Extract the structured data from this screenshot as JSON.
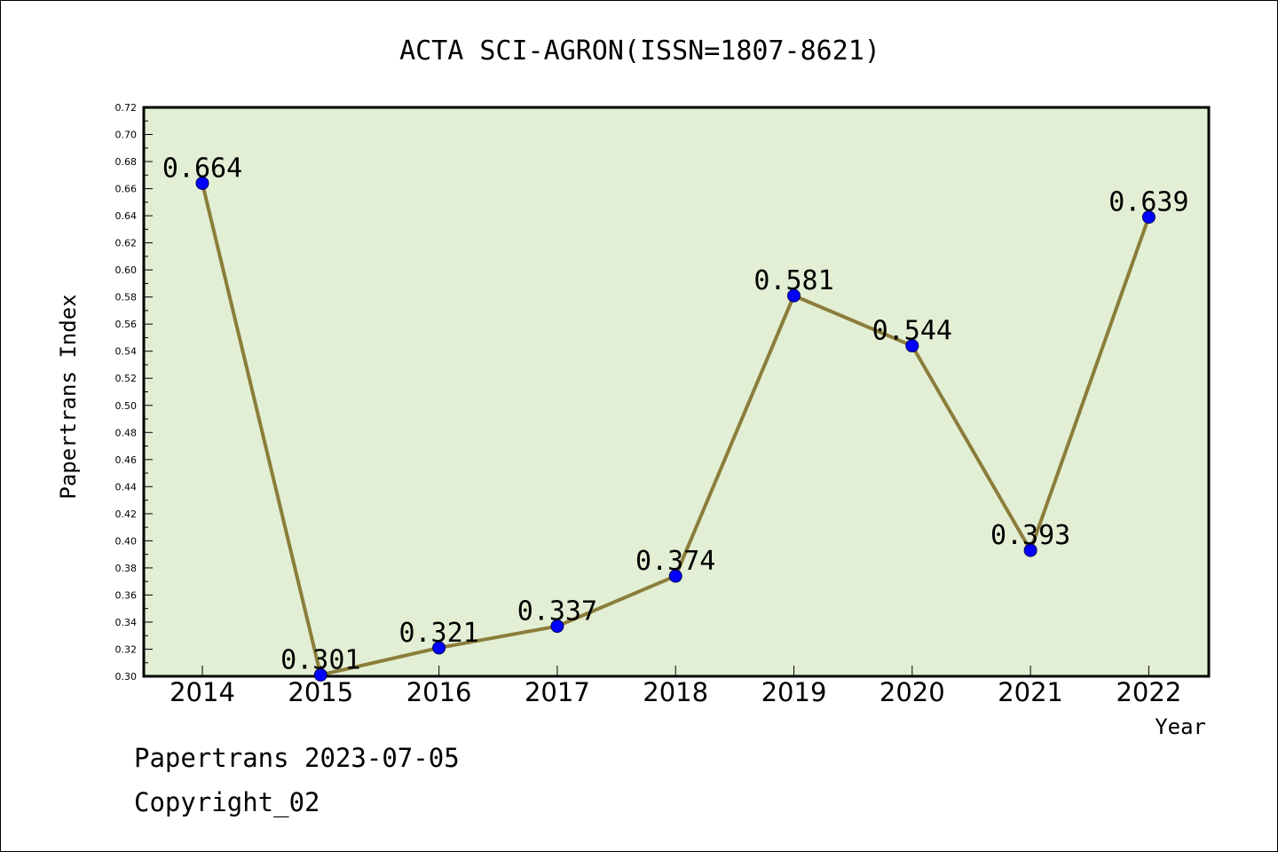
{
  "chart_data": {
    "type": "line",
    "title": "ACTA SCI-AGRON(ISSN=1807-8621)",
    "xlabel": "Year",
    "ylabel": "Papertrans Index",
    "categories": [
      "2014",
      "2015",
      "2016",
      "2017",
      "2018",
      "2019",
      "2020",
      "2021",
      "2022"
    ],
    "values": [
      0.664,
      0.301,
      0.321,
      0.337,
      0.374,
      0.581,
      0.544,
      0.393,
      0.639
    ],
    "data_labels": [
      "0.664",
      "0.301",
      "0.321",
      "0.337",
      "0.374",
      "0.581",
      "0.544",
      "0.393",
      "0.639"
    ],
    "ylim": [
      0.3,
      0.72
    ],
    "yticks": [
      "0.30",
      "0.32",
      "0.34",
      "0.36",
      "0.38",
      "0.40",
      "0.42",
      "0.44",
      "0.46",
      "0.48",
      "0.50",
      "0.52",
      "0.54",
      "0.56",
      "0.58",
      "0.60",
      "0.62",
      "0.64",
      "0.66",
      "0.68",
      "0.70",
      "0.72"
    ],
    "grid": false,
    "line_color": "#8b7d3a",
    "marker_color": "#0000ff",
    "plot_background": "#e2efd4"
  },
  "footer": {
    "source": "Papertrans 2023-07-05",
    "copyright": "Copyright_02"
  }
}
